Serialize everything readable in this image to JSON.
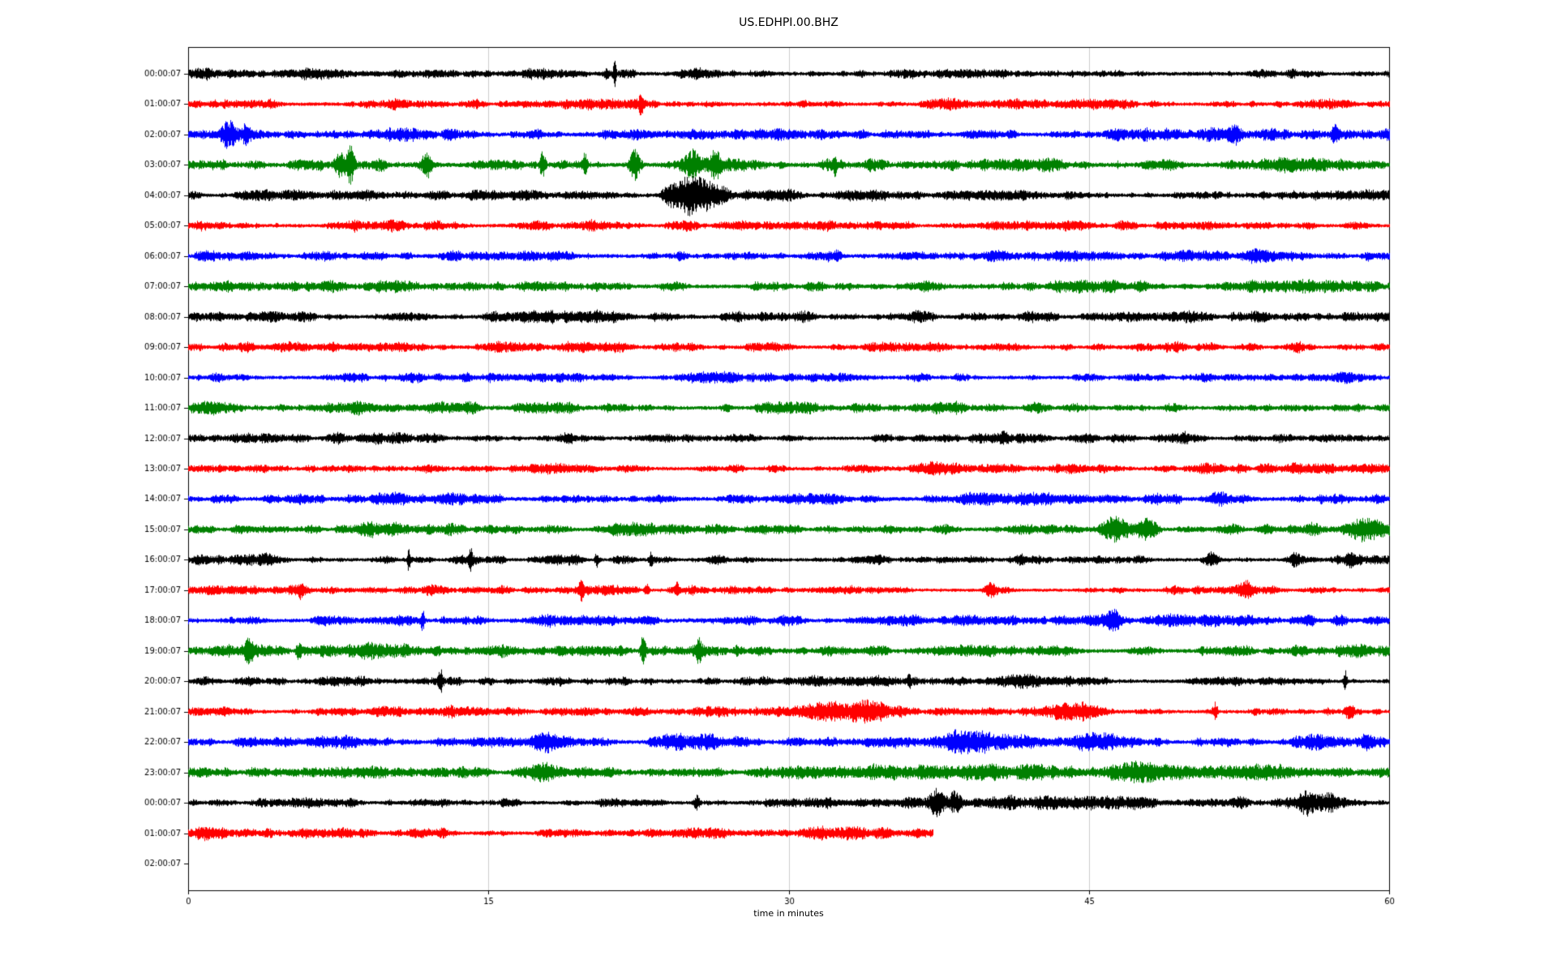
{
  "window": {
    "title": "US.EDHPI.00.BHZ"
  },
  "chart_data": {
    "type": "line",
    "subtype": "helicorder-drumplot",
    "title": "US.EDHPI.00.BHZ",
    "xlabel": "time in minutes",
    "ylabel": "",
    "xlim": [
      0,
      60
    ],
    "xticks": [
      0,
      15,
      30,
      45,
      60
    ],
    "grid": true,
    "legend_position": "none",
    "trace_color_cycle": [
      "#000000",
      "#ff0000",
      "#0000ff",
      "#008000"
    ],
    "rows": [
      {
        "label": "00:00:07",
        "color": "#000000",
        "noise": 4.5,
        "duration": 60,
        "events": [
          {
            "t": 21.3,
            "a": 16,
            "w": 0.07
          },
          {
            "t": 20.9,
            "a": 5,
            "w": 0.15
          }
        ]
      },
      {
        "label": "01:00:07",
        "color": "#ff0000",
        "noise": 4.2,
        "duration": 60,
        "events": [
          {
            "t": 22.6,
            "a": 8,
            "w": 0.12
          }
        ]
      },
      {
        "label": "02:00:07",
        "color": "#0000ff",
        "noise": 4.8,
        "duration": 60,
        "events": [
          {
            "t": 2.0,
            "a": 13,
            "w": 0.35
          },
          {
            "t": 2.9,
            "a": 9,
            "w": 0.3
          },
          {
            "t": 52.3,
            "a": 7,
            "w": 0.2
          },
          {
            "t": 57.3,
            "a": 9,
            "w": 0.2
          }
        ]
      },
      {
        "label": "03:00:07",
        "color": "#008000",
        "noise": 5.2,
        "duration": 60,
        "events": [
          {
            "t": 7.6,
            "a": 9,
            "w": 0.3
          },
          {
            "t": 8.1,
            "a": 17,
            "w": 0.2
          },
          {
            "t": 11.9,
            "a": 11,
            "w": 0.25
          },
          {
            "t": 17.7,
            "a": 12,
            "w": 0.15
          },
          {
            "t": 19.8,
            "a": 13,
            "w": 0.12
          },
          {
            "t": 22.3,
            "a": 17,
            "w": 0.25
          },
          {
            "t": 25.2,
            "a": 9,
            "w": 0.4
          },
          {
            "t": 26.3,
            "a": 11,
            "w": 0.2
          },
          {
            "t": 32.3,
            "a": 11,
            "w": 0.08
          }
        ]
      },
      {
        "label": "04:00:07",
        "color": "#000000",
        "noise": 4.2,
        "duration": 60,
        "events": [
          {
            "t": 24.1,
            "a": 9,
            "w": 0.4
          },
          {
            "t": 24.9,
            "a": 17,
            "w": 0.5
          },
          {
            "t": 25.7,
            "a": 13,
            "w": 0.5
          },
          {
            "t": 26.6,
            "a": 8,
            "w": 0.5
          }
        ]
      },
      {
        "label": "05:00:07",
        "color": "#ff0000",
        "noise": 4.2,
        "duration": 60,
        "events": []
      },
      {
        "label": "06:00:07",
        "color": "#0000ff",
        "noise": 4.6,
        "duration": 60,
        "events": []
      },
      {
        "label": "07:00:07",
        "color": "#008000",
        "noise": 4.6,
        "duration": 60,
        "events": []
      },
      {
        "label": "08:00:07",
        "color": "#000000",
        "noise": 4.6,
        "duration": 60,
        "events": []
      },
      {
        "label": "09:00:07",
        "color": "#ff0000",
        "noise": 4.2,
        "duration": 60,
        "events": []
      },
      {
        "label": "10:00:07",
        "color": "#0000ff",
        "noise": 4.2,
        "duration": 60,
        "events": []
      },
      {
        "label": "11:00:07",
        "color": "#008000",
        "noise": 4.6,
        "duration": 60,
        "events": []
      },
      {
        "label": "12:00:07",
        "color": "#000000",
        "noise": 4.2,
        "duration": 60,
        "events": []
      },
      {
        "label": "13:00:07",
        "color": "#ff0000",
        "noise": 4.2,
        "duration": 60,
        "events": []
      },
      {
        "label": "14:00:07",
        "color": "#0000ff",
        "noise": 4.8,
        "duration": 60,
        "events": []
      },
      {
        "label": "15:00:07",
        "color": "#008000",
        "noise": 4.6,
        "duration": 60,
        "events": [
          {
            "t": 46.3,
            "a": 12,
            "w": 0.7
          },
          {
            "t": 47.8,
            "a": 9,
            "w": 0.5
          },
          {
            "t": 56.2,
            "a": 5,
            "w": 0.4
          },
          {
            "t": 58.7,
            "a": 8,
            "w": 0.8
          }
        ]
      },
      {
        "label": "16:00:07",
        "color": "#000000",
        "noise": 4.0,
        "duration": 60,
        "events": [
          {
            "t": 11.0,
            "a": 11,
            "w": 0.07
          },
          {
            "t": 14.1,
            "a": 8,
            "w": 0.07
          },
          {
            "t": 20.4,
            "a": 8,
            "w": 0.09
          },
          {
            "t": 23.1,
            "a": 6,
            "w": 0.1
          },
          {
            "t": 41.6,
            "a": 5,
            "w": 0.3
          },
          {
            "t": 51.1,
            "a": 6,
            "w": 0.35
          },
          {
            "t": 55.3,
            "a": 7,
            "w": 0.35
          },
          {
            "t": 58.0,
            "a": 6,
            "w": 0.2
          }
        ]
      },
      {
        "label": "17:00:07",
        "color": "#ff0000",
        "noise": 3.8,
        "duration": 60,
        "events": [
          {
            "t": 5.6,
            "a": 6,
            "w": 0.1
          },
          {
            "t": 19.6,
            "a": 9,
            "w": 0.12
          },
          {
            "t": 22.9,
            "a": 7,
            "w": 0.1
          },
          {
            "t": 24.4,
            "a": 7,
            "w": 0.1
          },
          {
            "t": 40.1,
            "a": 5,
            "w": 0.3
          },
          {
            "t": 52.9,
            "a": 6,
            "w": 0.2
          }
        ]
      },
      {
        "label": "18:00:07",
        "color": "#0000ff",
        "noise": 4.4,
        "duration": 60,
        "events": [
          {
            "t": 11.7,
            "a": 10,
            "w": 0.1
          },
          {
            "t": 46.2,
            "a": 9,
            "w": 0.35
          },
          {
            "t": 57.5,
            "a": 5,
            "w": 0.3
          }
        ]
      },
      {
        "label": "19:00:07",
        "color": "#008000",
        "noise": 4.6,
        "duration": 60,
        "events": [
          {
            "t": 3.0,
            "a": 9,
            "w": 0.3
          },
          {
            "t": 5.5,
            "a": 8,
            "w": 0.12
          },
          {
            "t": 22.7,
            "a": 13,
            "w": 0.12
          },
          {
            "t": 25.5,
            "a": 9,
            "w": 0.15
          }
        ]
      },
      {
        "label": "20:00:07",
        "color": "#000000",
        "noise": 4.2,
        "duration": 60,
        "events": [
          {
            "t": 12.6,
            "a": 10,
            "w": 0.12
          },
          {
            "t": 36.0,
            "a": 5,
            "w": 0.1
          },
          {
            "t": 57.8,
            "a": 10,
            "w": 0.09
          }
        ]
      },
      {
        "label": "21:00:07",
        "color": "#ff0000",
        "noise": 4.0,
        "duration": 60,
        "events": [
          {
            "t": 13.1,
            "a": 5,
            "w": 0.5
          },
          {
            "t": 31.5,
            "a": 7,
            "w": 1.3
          },
          {
            "t": 33.8,
            "a": 7,
            "w": 1.0
          },
          {
            "t": 43.9,
            "a": 6,
            "w": 1.4
          },
          {
            "t": 51.3,
            "a": 8,
            "w": 0.12
          },
          {
            "t": 58.0,
            "a": 4,
            "w": 0.3
          }
        ]
      },
      {
        "label": "22:00:07",
        "color": "#0000ff",
        "noise": 4.4,
        "duration": 60,
        "events": [
          {
            "t": 18.1,
            "a": 5,
            "w": 0.9
          },
          {
            "t": 24.3,
            "a": 6,
            "w": 0.9
          },
          {
            "t": 26.0,
            "a": 6,
            "w": 0.8
          },
          {
            "t": 39.3,
            "a": 7,
            "w": 1.6
          },
          {
            "t": 45.1,
            "a": 6,
            "w": 0.8
          },
          {
            "t": 56.4,
            "a": 6,
            "w": 0.9
          },
          {
            "t": 58.9,
            "a": 6,
            "w": 0.3
          }
        ]
      },
      {
        "label": "23:00:07",
        "color": "#008000",
        "noise": 4.8,
        "duration": 60,
        "events": [
          {
            "t": 17.9,
            "a": 6,
            "w": 1.0
          },
          {
            "t": 35.8,
            "a": 3,
            "w": 3.0
          },
          {
            "t": 40.0,
            "a": 3,
            "w": 2.0
          },
          {
            "t": 48.0,
            "a": 3,
            "w": 5.0
          },
          {
            "t": 55.0,
            "a": 3,
            "w": 2.5
          }
        ]
      },
      {
        "label": "00:00:07",
        "color": "#000000",
        "noise": 4.2,
        "duration": 60,
        "events": [
          {
            "t": 25.4,
            "a": 7,
            "w": 0.15
          },
          {
            "t": 37.4,
            "a": 13,
            "w": 0.35
          },
          {
            "t": 38.3,
            "a": 10,
            "w": 0.3
          },
          {
            "t": 43.0,
            "a": 2,
            "w": 8.0
          },
          {
            "t": 55.9,
            "a": 9,
            "w": 0.5
          },
          {
            "t": 57.0,
            "a": 7,
            "w": 0.4
          }
        ]
      },
      {
        "label": "01:00:07",
        "color": "#ff0000",
        "noise": 4.2,
        "duration": 37.2,
        "events": []
      },
      {
        "label": "02:00:07",
        "color": "#0000ff",
        "noise": 0,
        "duration": 0,
        "events": []
      }
    ]
  }
}
